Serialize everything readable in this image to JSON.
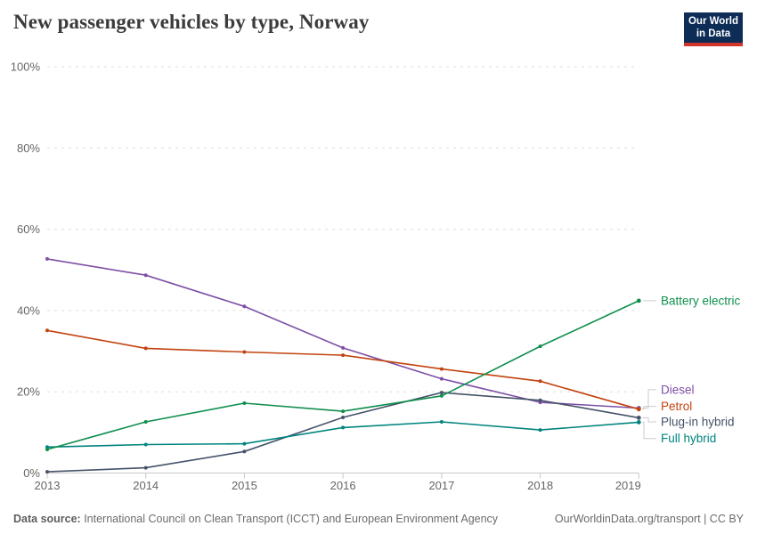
{
  "header": {
    "title": "New passenger vehicles by type, Norway",
    "logo": {
      "line1": "Our World",
      "line2": "in Data"
    }
  },
  "chart_data": {
    "type": "line",
    "title": "New passenger vehicles by type, Norway",
    "x": [
      2013,
      2014,
      2015,
      2016,
      2017,
      2018,
      2019
    ],
    "series": [
      {
        "name": "Diesel",
        "color": "#7d4fa6",
        "values": [
          52.7,
          48.7,
          41.0,
          30.8,
          23.2,
          17.4,
          16.0
        ],
        "label_pct": 20.5
      },
      {
        "name": "Petrol",
        "color": "#c2430f",
        "values": [
          35.1,
          30.7,
          29.8,
          29.0,
          25.6,
          22.6,
          15.7
        ],
        "label_pct": 16.4
      },
      {
        "name": "Plug-in hybrid",
        "color": "#455268",
        "values": [
          0.3,
          1.3,
          5.3,
          13.7,
          19.8,
          17.9,
          13.6
        ],
        "label_pct": 12.6
      },
      {
        "name": "Full hybrid",
        "color": "#00847e",
        "values": [
          6.4,
          7.0,
          7.2,
          11.2,
          12.6,
          10.6,
          12.5
        ],
        "label_pct": 8.5
      },
      {
        "name": "Battery electric",
        "color": "#0f8e4e",
        "values": [
          5.8,
          12.6,
          17.2,
          15.2,
          19.0,
          31.2,
          42.4
        ],
        "label_pct": 42.4
      }
    ],
    "xlabel": "",
    "ylabel": "",
    "ylim": [
      0,
      100
    ],
    "yticks": [
      0,
      20,
      40,
      60,
      80,
      100
    ],
    "ytick_suffix": "%",
    "grid": "horizontal dashed",
    "legend_position": "end-of-line labels at right"
  },
  "style_colors": {
    "grid": "#dddddd",
    "axis": "#c8c8c8",
    "tick_text": "#666666",
    "connector": "#cccccc"
  },
  "footer": {
    "source_label": "Data source:",
    "source_text": " International Council on Clean Transport (ICCT) and European Environment Agency",
    "credit": "OurWorldinData.org/transport | CC BY"
  }
}
